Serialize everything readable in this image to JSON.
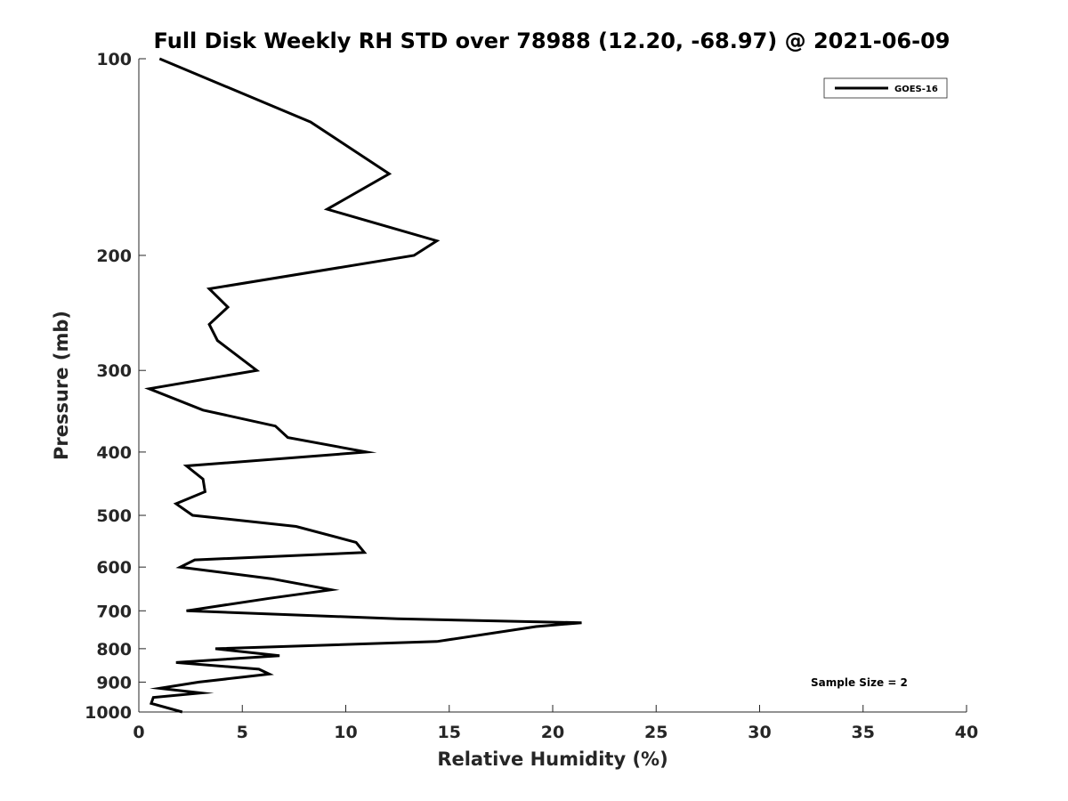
{
  "chart_data": {
    "type": "line",
    "title": "Full Disk Weekly RH STD over 78988 (12.20, -68.97) @ 2021-06-09",
    "xlabel": "Relative Humidity (%)",
    "ylabel": "Pressure (mb)",
    "xlim": [
      0,
      40
    ],
    "ylim": [
      100,
      1000
    ],
    "y_scale": "log",
    "y_reversed": true,
    "xticks": [
      0,
      5,
      10,
      15,
      20,
      25,
      30,
      35,
      40
    ],
    "yticks": [
      100,
      200,
      300,
      400,
      500,
      600,
      700,
      800,
      900,
      1000
    ],
    "grid": false,
    "legend_position": "top-right",
    "series": [
      {
        "name": "GOES-16",
        "color": "#000000",
        "points": [
          [
            1.0,
            100
          ],
          [
            8.3,
            125
          ],
          [
            12.1,
            150
          ],
          [
            9.1,
            170
          ],
          [
            14.4,
            190
          ],
          [
            13.3,
            200
          ],
          [
            3.4,
            225
          ],
          [
            4.3,
            240
          ],
          [
            3.4,
            255
          ],
          [
            3.8,
            270
          ],
          [
            5.7,
            300
          ],
          [
            0.5,
            320
          ],
          [
            3.1,
            345
          ],
          [
            6.6,
            365
          ],
          [
            7.2,
            380
          ],
          [
            11.0,
            400
          ],
          [
            2.3,
            420
          ],
          [
            3.1,
            440
          ],
          [
            3.2,
            460
          ],
          [
            1.8,
            480
          ],
          [
            2.6,
            500
          ],
          [
            7.6,
            520
          ],
          [
            10.5,
            550
          ],
          [
            10.9,
            570
          ],
          [
            2.7,
            585
          ],
          [
            2.0,
            600
          ],
          [
            6.4,
            625
          ],
          [
            9.3,
            650
          ],
          [
            6.3,
            670
          ],
          [
            2.3,
            700
          ],
          [
            12.5,
            720
          ],
          [
            21.4,
            730
          ],
          [
            19.2,
            740
          ],
          [
            14.4,
            780
          ],
          [
            3.7,
            800
          ],
          [
            6.8,
            820
          ],
          [
            1.8,
            840
          ],
          [
            5.8,
            860
          ],
          [
            6.3,
            875
          ],
          [
            2.9,
            900
          ],
          [
            1.0,
            920
          ],
          [
            3.0,
            935
          ],
          [
            0.7,
            950
          ],
          [
            0.6,
            970
          ],
          [
            2.1,
            1000
          ]
        ]
      }
    ],
    "annotations": [
      "Sample Size = 2"
    ]
  }
}
